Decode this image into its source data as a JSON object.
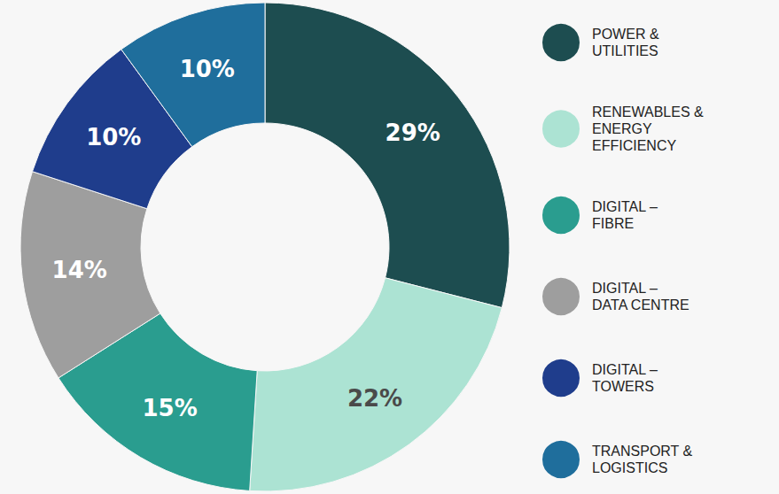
{
  "chart_data": {
    "type": "pie",
    "categories": [
      "POWER & UTILITIES",
      "RENEWABLES & ENERGY EFFICIENCY",
      "DIGITAL – FIBRE",
      "DIGITAL – DATA CENTRE",
      "DIGITAL – TOWERS",
      "TRANSPORT & LOGISTICS"
    ],
    "values": [
      29,
      22,
      15,
      14,
      10,
      10
    ],
    "value_labels": [
      "29%",
      "22%",
      "15%",
      "14%",
      "10%",
      "10%"
    ],
    "colors": [
      "#1d4d50",
      "#ace3d3",
      "#2a9d8f",
      "#9e9e9e",
      "#1f3d8c",
      "#1f6e9c"
    ],
    "data_labels": true,
    "legend": "right"
  }
}
